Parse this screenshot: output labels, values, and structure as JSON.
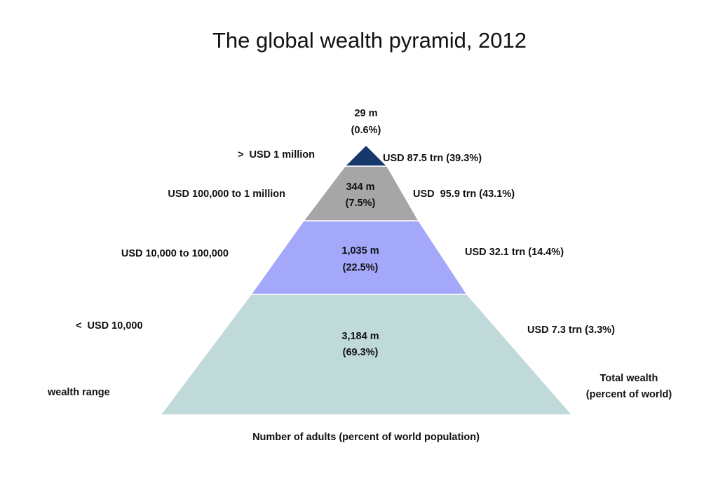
{
  "title": "The global wealth pyramid, 2012",
  "tiers": [
    {
      "range": ">  USD 1 million",
      "adults": "29 m",
      "adults_share": "(0.6%)",
      "wealth": "USD 87.5 trn (39.3%)"
    },
    {
      "range": "USD 100,000 to 1 million",
      "adults": "344 m",
      "adults_share": "(7.5%)",
      "wealth": "USD  95.9 trn (43.1%)"
    },
    {
      "range": "USD 10,000 to 100,000",
      "adults": "1,035 m",
      "adults_share": "(22.5%)",
      "wealth": "USD 32.1 trn (14.4%)"
    },
    {
      "range": "<  USD 10,000",
      "adults": "3,184 m",
      "adults_share": "(69.3%)",
      "wealth": "USD 7.3 trn (3.3%)"
    }
  ],
  "labels": {
    "wealth_range": "wealth range",
    "total_wealth": "Total wealth",
    "total_wealth_unit": "(percent of world)",
    "adults_axis": "Number of adults (percent of world population)"
  }
}
